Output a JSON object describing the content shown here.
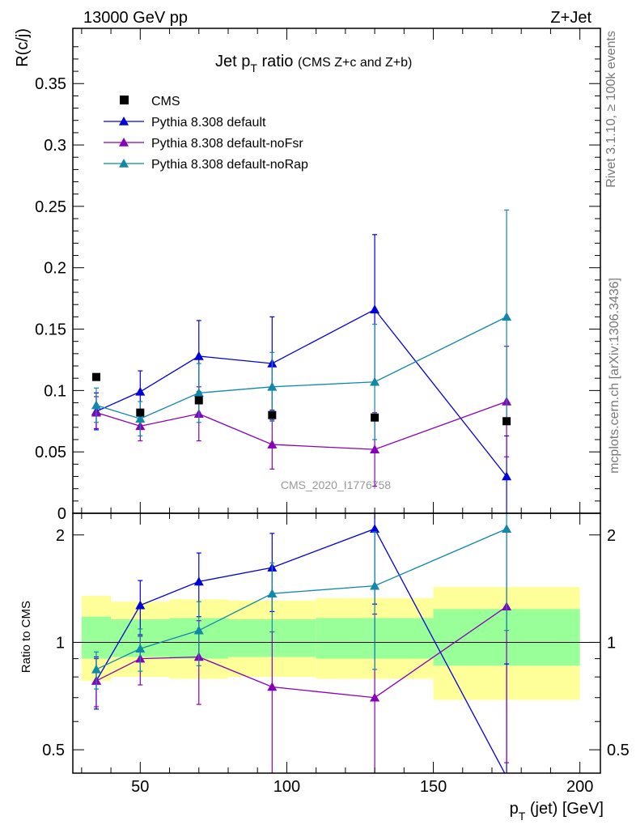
{
  "header": {
    "left": "13000 GeV pp",
    "right": "Z+Jet"
  },
  "side_text": {
    "top": "Rivet 3.1.10, ≥ 100k events",
    "bottom": "mcplots.cern.ch [arXiv:1306.3436]"
  },
  "watermark": "CMS_2020_I1776758",
  "chart_data": {
    "type": "line",
    "title_main": "Jet p",
    "title_sub": "T",
    "title_after": " ratio ",
    "title_paren": "(CMS  Z+c and Z+b)",
    "ylabel": "R(c/j)",
    "ratio_ylabel": "Ratio to CMS",
    "xlabel_main": "p",
    "xlabel_sub": "T",
    "xlabel_after": " (jet) [GeV]",
    "xlim": [
      27,
      207
    ],
    "ylim": [
      0,
      0.395
    ],
    "ratio_ylim": [
      0.43,
      2.3
    ],
    "x_ticks": [
      "50",
      "100",
      "150",
      "200"
    ],
    "x_tick_values": [
      50,
      100,
      150,
      200
    ],
    "y_ticks": [
      "0",
      "0.05",
      "0.1",
      "0.15",
      "0.2",
      "0.25",
      "0.3",
      "0.35"
    ],
    "y_tick_values": [
      0,
      0.05,
      0.1,
      0.15,
      0.2,
      0.25,
      0.3,
      0.35
    ],
    "ratio_ticks": [
      "0.5",
      "1",
      "2"
    ],
    "ratio_tick_values": [
      0.5,
      1,
      2
    ],
    "bins": [
      {
        "lo": 30,
        "hi": 40,
        "x": 35,
        "band_inner": [
          0.9,
          1.18
        ],
        "band_outer": [
          0.78,
          1.35
        ]
      },
      {
        "lo": 40,
        "hi": 60,
        "x": 50,
        "band_inner": [
          0.91,
          1.16
        ],
        "band_outer": [
          0.8,
          1.3
        ]
      },
      {
        "lo": 60,
        "hi": 80,
        "x": 70,
        "band_inner": [
          0.9,
          1.17
        ],
        "band_outer": [
          0.79,
          1.32
        ]
      },
      {
        "lo": 80,
        "hi": 110,
        "x": 95,
        "band_inner": [
          0.91,
          1.16
        ],
        "band_outer": [
          0.8,
          1.31
        ]
      },
      {
        "lo": 110,
        "hi": 150,
        "x": 130,
        "band_inner": [
          0.9,
          1.17
        ],
        "band_outer": [
          0.79,
          1.33
        ]
      },
      {
        "lo": 150,
        "hi": 200,
        "x": 175,
        "band_inner": [
          0.86,
          1.24
        ],
        "band_outer": [
          0.69,
          1.43
        ]
      }
    ],
    "cms": {
      "name": "CMS",
      "color": "#000000",
      "x": [
        35,
        50,
        70,
        95,
        130,
        175
      ],
      "values": [
        0.111,
        0.082,
        0.092,
        0.08,
        0.078,
        0.075
      ]
    },
    "series": [
      {
        "name": "Pythia 8.308 default",
        "color": "#0000dd",
        "x": [
          35,
          50,
          70,
          95,
          130,
          175
        ],
        "values": [
          0.083,
          0.099,
          0.128,
          0.122,
          0.166,
          0.03
        ],
        "err": [
          0.015,
          0.017,
          0.029,
          0.038,
          0.061,
          0.033
        ],
        "ratio": [
          0.78,
          1.27,
          1.48,
          1.62,
          2.08,
          0.42
        ],
        "ratio_err": [
          0.13,
          0.22,
          0.3,
          0.4,
          0.8,
          0.45
        ]
      },
      {
        "name": "Pythia 8.308 default-noFsr",
        "color": "#8800bb",
        "x": [
          35,
          50,
          70,
          95,
          130,
          175
        ],
        "values": [
          0.082,
          0.071,
          0.081,
          0.056,
          0.052,
          0.091
        ],
        "err": [
          0.013,
          0.012,
          0.022,
          0.02,
          0.03,
          0.045
        ],
        "ratio": [
          0.78,
          0.9,
          0.91,
          0.75,
          0.7,
          1.26
        ],
        "ratio_err": [
          0.12,
          0.14,
          0.24,
          0.32,
          0.5,
          0.8
        ]
      },
      {
        "name": "Pythia 8.308 default-noRap",
        "color": "#1188aa",
        "x": [
          35,
          50,
          70,
          95,
          130,
          175
        ],
        "values": [
          0.088,
          0.077,
          0.098,
          0.103,
          0.107,
          0.16
        ],
        "err": [
          0.014,
          0.014,
          0.024,
          0.028,
          0.047,
          0.087
        ],
        "ratio": [
          0.84,
          0.96,
          1.08,
          1.37,
          1.44,
          2.08
        ],
        "ratio_err": [
          0.1,
          0.13,
          0.22,
          0.3,
          0.6,
          1.0
        ]
      }
    ]
  }
}
